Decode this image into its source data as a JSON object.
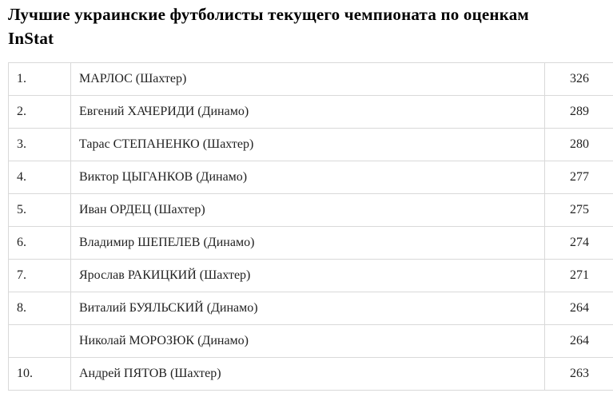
{
  "page": {
    "title_line1": "Лучшие украинские футболисты текущего чемпионата по оценкам",
    "title_line2": "InStat"
  },
  "colors": {
    "background": "#ffffff",
    "title_text": "#000000",
    "table_text": "#222222",
    "table_border": "#d9d9d9"
  },
  "table": {
    "columns": [
      "rank",
      "player",
      "score"
    ],
    "rows": [
      {
        "rank": "1.",
        "player": "МАРЛОС (Шахтер)",
        "score": "326"
      },
      {
        "rank": "2.",
        "player": "Евгений ХАЧЕРИДИ (Динамо)",
        "score": "289"
      },
      {
        "rank": "3.",
        "player": "Тарас СТЕПАНЕНКО (Шахтер)",
        "score": "280"
      },
      {
        "rank": "4.",
        "player": "Виктор ЦЫГАНКОВ (Динамо)",
        "score": "277"
      },
      {
        "rank": "5.",
        "player": "Иван ОРДЕЦ (Шахтер)",
        "score": "275"
      },
      {
        "rank": "6.",
        "player": "Владимир ШЕПЕЛЕВ (Динамо)",
        "score": "274"
      },
      {
        "rank": "7.",
        "player": "Ярослав РАКИЦКИЙ (Шахтер)",
        "score": "271"
      },
      {
        "rank": "8.",
        "player": "Виталий БУЯЛЬСКИЙ (Динамо)",
        "score": "264"
      },
      {
        "rank": "",
        "player": "Николай МОРОЗЮК (Динамо)",
        "score": "264"
      },
      {
        "rank": "10.",
        "player": "Андрей ПЯТОВ (Шахтер)",
        "score": "263"
      }
    ]
  }
}
